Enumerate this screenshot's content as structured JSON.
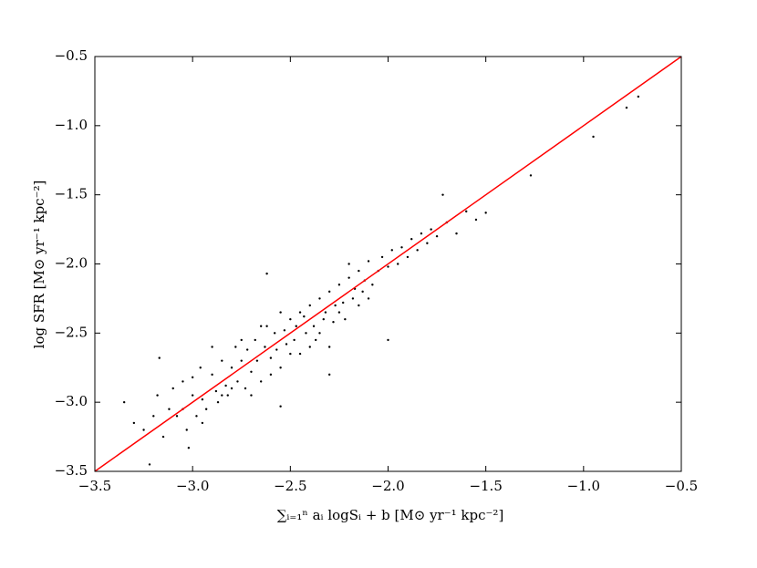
{
  "chart_data": {
    "type": "scatter",
    "xlabel": "∑ᵢ₌₁ⁿ aᵢ logSᵢ + b [M⊙ yr⁻¹ kpc⁻²]",
    "ylabel": "log SFR [M⊙ yr⁻¹ kpc⁻²]",
    "xlim": [
      -3.5,
      -0.5
    ],
    "ylim": [
      -3.5,
      -0.5
    ],
    "xticks": [
      {
        "value": -3.5,
        "label": "−3.5"
      },
      {
        "value": -3.0,
        "label": "−3.0"
      },
      {
        "value": -2.5,
        "label": "−2.5"
      },
      {
        "value": -2.0,
        "label": "−2.0"
      },
      {
        "value": -1.5,
        "label": "−1.5"
      },
      {
        "value": -1.0,
        "label": "−1.0"
      },
      {
        "value": -0.5,
        "label": "−0.5"
      }
    ],
    "yticks": [
      {
        "value": -3.5,
        "label": "−3.5"
      },
      {
        "value": -3.0,
        "label": "−3.0"
      },
      {
        "value": -2.5,
        "label": "−2.5"
      },
      {
        "value": -2.0,
        "label": "−2.0"
      },
      {
        "value": -1.5,
        "label": "−1.5"
      },
      {
        "value": -1.0,
        "label": "−1.0"
      },
      {
        "value": -0.5,
        "label": "−0.5"
      }
    ],
    "color": "#000000",
    "x": [
      -3.3,
      -3.25,
      -3.2,
      -3.18,
      -3.15,
      -3.12,
      -3.1,
      -3.08,
      -3.05,
      -3.03,
      -3.0,
      -2.98,
      -2.96,
      -2.95,
      -2.93,
      -2.9,
      -2.88,
      -2.87,
      -2.85,
      -2.83,
      -2.82,
      -2.8,
      -2.78,
      -2.77,
      -2.75,
      -2.73,
      -2.72,
      -2.7,
      -2.68,
      -2.67,
      -2.65,
      -2.63,
      -2.62,
      -2.6,
      -2.58,
      -2.57,
      -2.55,
      -2.53,
      -2.52,
      -2.5,
      -2.48,
      -2.47,
      -2.45,
      -2.43,
      -2.42,
      -2.4,
      -2.38,
      -2.37,
      -2.35,
      -2.33,
      -2.32,
      -2.3,
      -2.28,
      -2.27,
      -2.25,
      -2.23,
      -2.22,
      -2.2,
      -2.18,
      -2.17,
      -2.15,
      -2.13,
      -2.12,
      -2.1,
      -2.08,
      -2.05,
      -2.03,
      -2.0,
      -1.98,
      -1.95,
      -1.93,
      -1.9,
      -1.88,
      -1.85,
      -1.83,
      -1.8,
      -1.78,
      -1.75,
      -1.72,
      -1.7,
      -1.65,
      -1.6,
      -1.55,
      -1.5,
      -1.27,
      -0.95,
      -0.78,
      -0.72,
      -3.05,
      -3.0,
      -2.95,
      -2.9,
      -2.85,
      -2.8,
      -2.75,
      -2.7,
      -2.65,
      -2.6,
      -2.55,
      -2.5,
      -2.45,
      -2.4,
      -2.35,
      -2.3,
      -2.25,
      -2.2,
      -2.15,
      -2.1,
      -3.35,
      -3.22,
      -2.62,
      -2.3,
      -3.17,
      -3.02,
      -2.55,
      -2.0
    ],
    "values": [
      -3.15,
      -3.2,
      -3.1,
      -2.95,
      -3.25,
      -3.05,
      -2.9,
      -3.1,
      -2.85,
      -3.2,
      -2.95,
      -3.1,
      -2.75,
      -2.98,
      -3.05,
      -2.8,
      -2.92,
      -3.0,
      -2.7,
      -2.88,
      -2.95,
      -2.75,
      -2.6,
      -2.85,
      -2.7,
      -2.9,
      -2.62,
      -2.78,
      -2.55,
      -2.7,
      -2.85,
      -2.6,
      -2.45,
      -2.68,
      -2.5,
      -2.62,
      -2.75,
      -2.48,
      -2.58,
      -2.4,
      -2.55,
      -2.45,
      -2.65,
      -2.38,
      -2.5,
      -2.3,
      -2.45,
      -2.55,
      -2.25,
      -2.4,
      -2.35,
      -2.2,
      -2.42,
      -2.3,
      -2.15,
      -2.28,
      -2.4,
      -2.1,
      -2.25,
      -2.18,
      -2.05,
      -2.2,
      -2.12,
      -1.98,
      -2.15,
      -2.05,
      -1.95,
      -2.02,
      -1.9,
      -2.0,
      -1.88,
      -1.95,
      -1.82,
      -1.9,
      -1.78,
      -1.85,
      -1.75,
      -1.8,
      -1.5,
      -1.7,
      -1.78,
      -1.62,
      -1.68,
      -1.63,
      -1.36,
      -1.08,
      -0.87,
      -0.79,
      -3.05,
      -2.82,
      -3.15,
      -2.6,
      -2.95,
      -2.9,
      -2.55,
      -2.95,
      -2.45,
      -2.8,
      -2.35,
      -2.65,
      -2.35,
      -2.6,
      -2.5,
      -2.6,
      -2.35,
      -2.0,
      -2.3,
      -2.25,
      -3.0,
      -3.45,
      -2.07,
      -2.8,
      -2.68,
      -3.33,
      -3.03,
      -2.55
    ],
    "fit_line": {
      "x": [
        -3.5,
        -0.5
      ],
      "values": [
        -3.5,
        -0.5
      ],
      "color": "#ff0000"
    }
  }
}
